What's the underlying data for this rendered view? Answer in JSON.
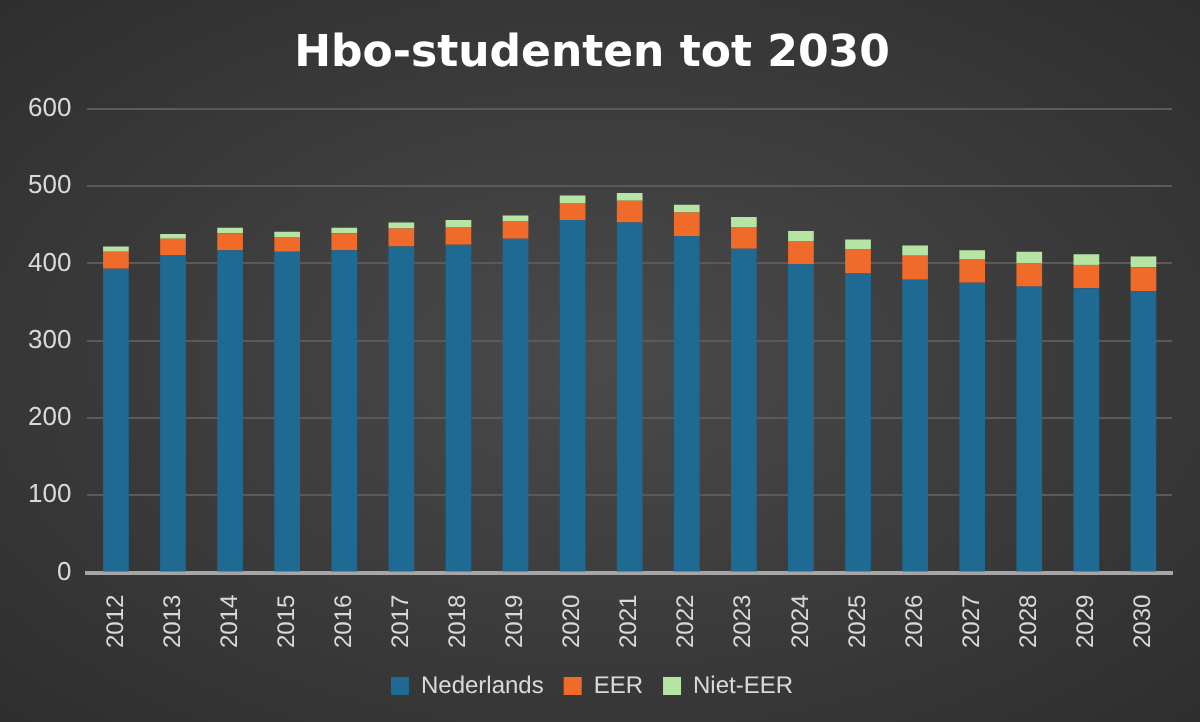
{
  "chart_data": {
    "type": "bar",
    "title": "Hbo-studenten tot 2030",
    "stacked": true,
    "categories": [
      "2012",
      "2013",
      "2014",
      "2015",
      "2016",
      "2017",
      "2018",
      "2019",
      "2020",
      "2021",
      "2022",
      "2023",
      "2024",
      "2025",
      "2026",
      "2027",
      "2028",
      "2029",
      "2030"
    ],
    "series": [
      {
        "name": "Nederlands",
        "color": "#1e6a93",
        "values": [
          393,
          411,
          417,
          415,
          417,
          422,
          424,
          432,
          456,
          453,
          435,
          419,
          399,
          387,
          379,
          375,
          370,
          368,
          364
        ]
      },
      {
        "name": "EER",
        "color": "#f06a2a",
        "values": [
          22,
          21,
          22,
          19,
          22,
          23,
          23,
          23,
          22,
          28,
          31,
          28,
          30,
          31,
          31,
          30,
          30,
          30,
          31
        ]
      },
      {
        "name": "Niet-EER",
        "color": "#b6e5a3",
        "values": [
          7,
          6,
          7,
          7,
          7,
          8,
          9,
          7,
          10,
          10,
          10,
          13,
          13,
          13,
          13,
          12,
          15,
          14,
          14
        ]
      }
    ],
    "ylim": [
      0,
      600
    ],
    "yticks": [
      0,
      100,
      200,
      300,
      400,
      500,
      600
    ],
    "grid": "y",
    "legend": "bottom"
  }
}
